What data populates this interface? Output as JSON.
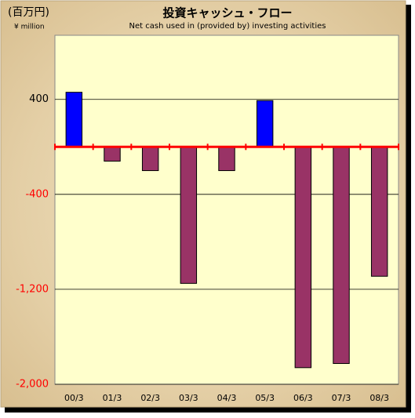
{
  "chart_data": {
    "type": "bar",
    "title": "投資キャッシュ・フロー",
    "subtitle": "Net cash used in (provided by) investing activities",
    "unit_label": "(百万円)",
    "unit_label_en": "¥ million",
    "categories": [
      "00/3",
      "01/3",
      "02/3",
      "03/3",
      "04/3",
      "05/3",
      "06/3",
      "07/3",
      "08/3"
    ],
    "values": [
      460,
      -120,
      -200,
      -1150,
      -200,
      390,
      -1860,
      -1825,
      -1090
    ],
    "colors": [
      "#0000ff",
      "#993366",
      "#993366",
      "#993366",
      "#993366",
      "#0000ff",
      "#993366",
      "#993366",
      "#993366"
    ],
    "ylim": [
      -2000,
      940
    ],
    "yticks": [
      400,
      -400,
      {
        "value": -1200,
        "label": "-1,200"
      },
      {
        "value": -2000,
        "label": "-2,000"
      }
    ],
    "negative_tick_color": "#ff0000",
    "zero_line_color": "#ff0000",
    "grid": true
  }
}
